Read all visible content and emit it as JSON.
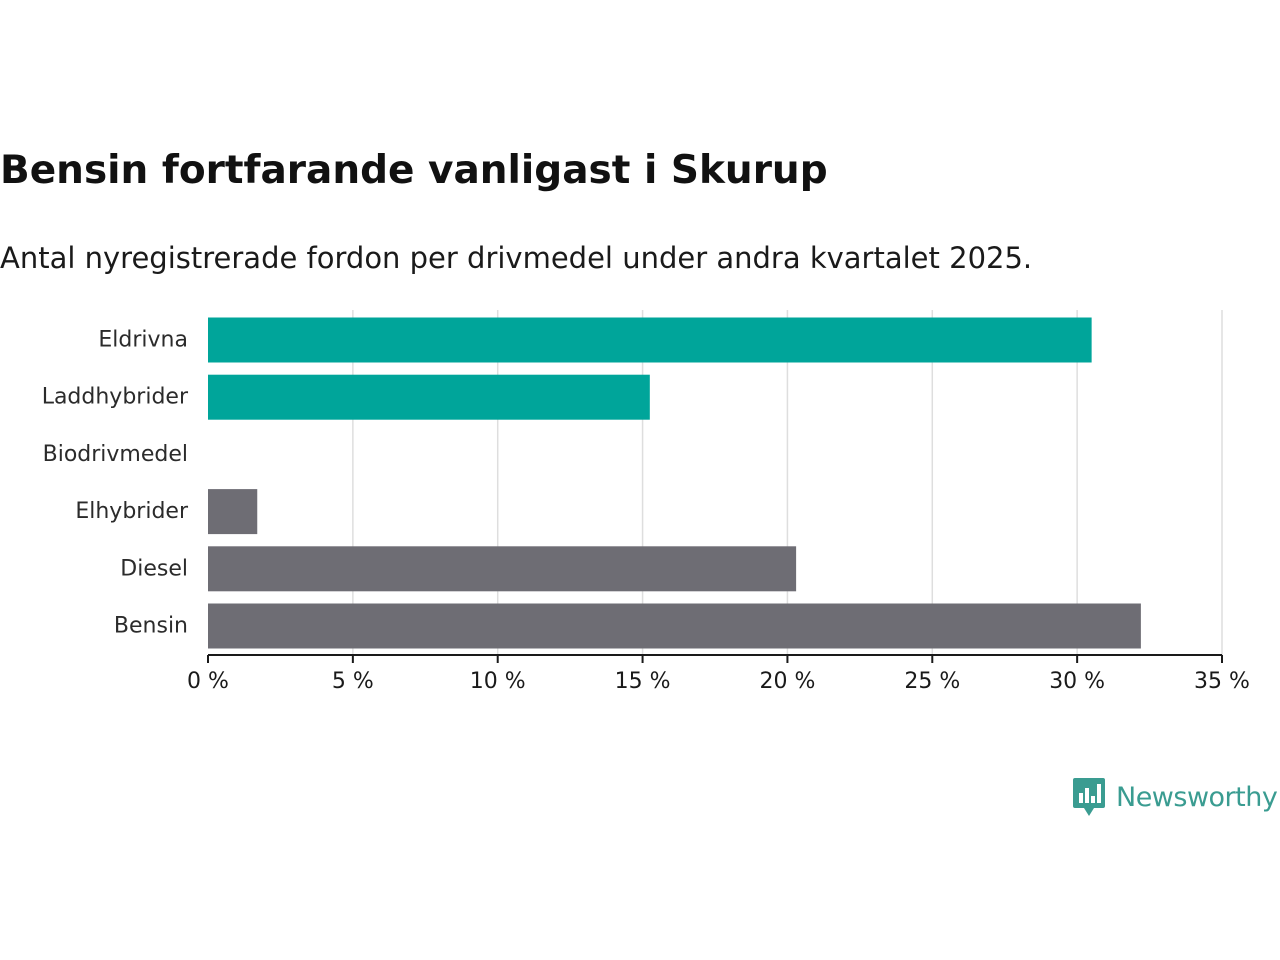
{
  "header": {
    "title": "Bensin fortfarande vanligast i Skurup",
    "subtitle": "Antal nyregistrerade fordon per drivmedel under andra kvartalet 2025."
  },
  "chart_data": {
    "type": "bar",
    "orientation": "horizontal",
    "categories": [
      "Eldrivna",
      "Laddhybrider",
      "Biodrivmedel",
      "Elhybrider",
      "Diesel",
      "Bensin"
    ],
    "values": [
      30.5,
      15.25,
      0,
      1.7,
      20.3,
      32.2
    ],
    "colors": [
      "#00a59a",
      "#00a59a",
      "#00a59a",
      "#6e6d74",
      "#6e6d74",
      "#6e6d74"
    ],
    "xlim": [
      0,
      35
    ],
    "xticks": [
      0,
      5,
      10,
      15,
      20,
      25,
      30,
      35
    ],
    "xtick_labels": [
      "0 %",
      "5 %",
      "10 %",
      "15 %",
      "20 %",
      "25 %",
      "30 %",
      "35 %"
    ],
    "unit": "%",
    "grid": "vertical",
    "title": "Bensin fortfarande vanligast i Skurup",
    "subtitle": "Antal nyregistrerade fordon per drivmedel under andra kvartalet 2025."
  },
  "brand": {
    "name": "Newsworthy",
    "color": "#3a9c91",
    "icon": "newsworthy-logo-icon"
  }
}
